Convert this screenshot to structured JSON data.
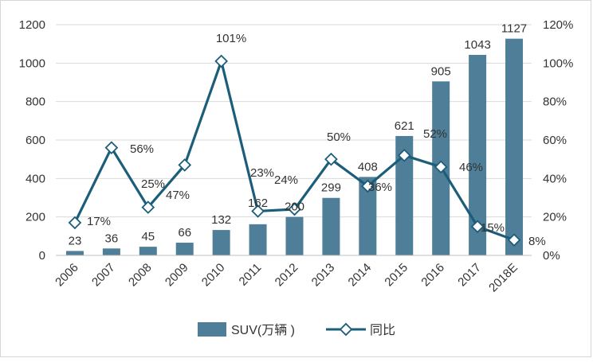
{
  "chart_data": {
    "type": "bar",
    "title": "",
    "categories": [
      "2006",
      "2007",
      "2008",
      "2009",
      "2010",
      "2011",
      "2012",
      "2013",
      "2014",
      "2015",
      "2016",
      "2017",
      "2018E"
    ],
    "series": [
      {
        "name": "SUV(万辆 )",
        "type": "bar",
        "axis": "left",
        "values": [
          23,
          36,
          45,
          66,
          132,
          162,
          200,
          299,
          408,
          621,
          905,
          1043,
          1127
        ],
        "labels": [
          "23",
          "36",
          "45",
          "66",
          "132",
          "162",
          "200",
          "299",
          "408",
          "621",
          "905",
          "1043",
          "1127"
        ],
        "color": "#4F7F98"
      },
      {
        "name": "同比",
        "type": "line",
        "axis": "right",
        "values": [
          17,
          56,
          25,
          47,
          101,
          23,
          24,
          50,
          36,
          52,
          46,
          15,
          8
        ],
        "labels": [
          "17%",
          "56%",
          "25%",
          "47%",
          "101%",
          "23%",
          "24%",
          "50%",
          "36%",
          "52%",
          "46%",
          "15%",
          "8%"
        ],
        "color": "#1C5E7A"
      }
    ],
    "y_left": {
      "min": 0,
      "max": 1200,
      "ticks": [
        "0",
        "200",
        "400",
        "600",
        "800",
        "1000",
        "1200"
      ]
    },
    "y_right": {
      "min": 0,
      "max": 120,
      "ticks": [
        "0%",
        "20%",
        "40%",
        "60%",
        "80%",
        "100%",
        "120%"
      ]
    },
    "grid": true,
    "legend_position": "bottom-center"
  }
}
